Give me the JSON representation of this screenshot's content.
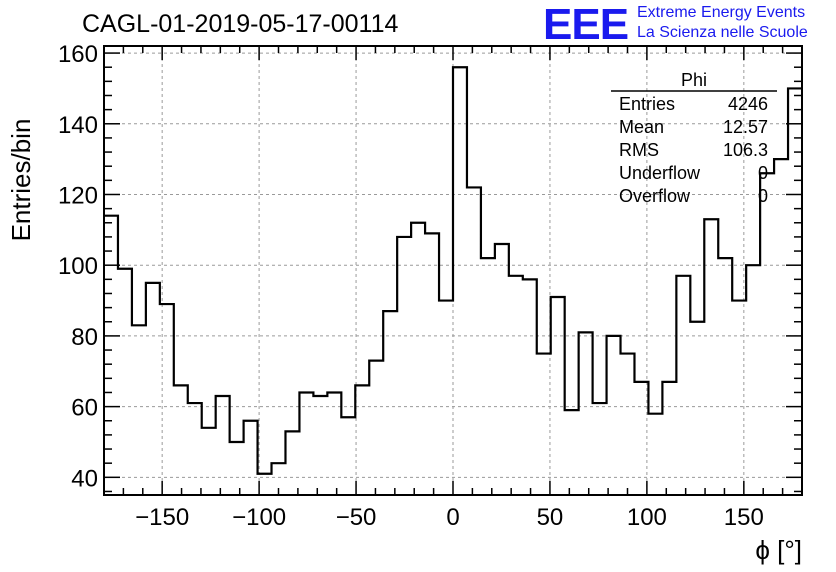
{
  "header": {
    "title": "CAGL-01-2019-05-17-00114",
    "logo": "EEE",
    "logo_line1": "Extreme Energy Events",
    "logo_line2": "La Scienza nelle Scuole"
  },
  "stats": {
    "name": "Phi",
    "rows": [
      {
        "label": "Entries",
        "value": "4246"
      },
      {
        "label": "Mean",
        "value": "12.57"
      },
      {
        "label": "RMS",
        "value": "106.3"
      },
      {
        "label": "Underflow",
        "value": "0"
      },
      {
        "label": "Overflow",
        "value": "0"
      }
    ]
  },
  "chart_data": {
    "type": "histogram",
    "xlabel": "ϕ [°]",
    "ylabel": "Entries/bin",
    "xlim": [
      -180,
      180
    ],
    "ylim": [
      35,
      162
    ],
    "xticks": [
      -150,
      -100,
      -50,
      0,
      50,
      100,
      150
    ],
    "yticks": [
      40,
      60,
      80,
      100,
      120,
      140,
      160
    ],
    "grid": true,
    "bin_width": 7.2,
    "bin_edges_start": -180,
    "values": [
      114,
      99,
      83,
      95,
      89,
      66,
      61,
      54,
      63,
      50,
      56,
      41,
      44,
      53,
      64,
      63,
      64,
      57,
      66,
      73,
      87,
      108,
      112,
      109,
      90,
      156,
      122,
      102,
      106,
      97,
      96,
      75,
      91,
      59,
      81,
      61,
      80,
      75,
      67,
      58,
      67,
      97,
      84,
      113,
      102,
      90,
      100,
      126,
      130,
      150
    ]
  }
}
